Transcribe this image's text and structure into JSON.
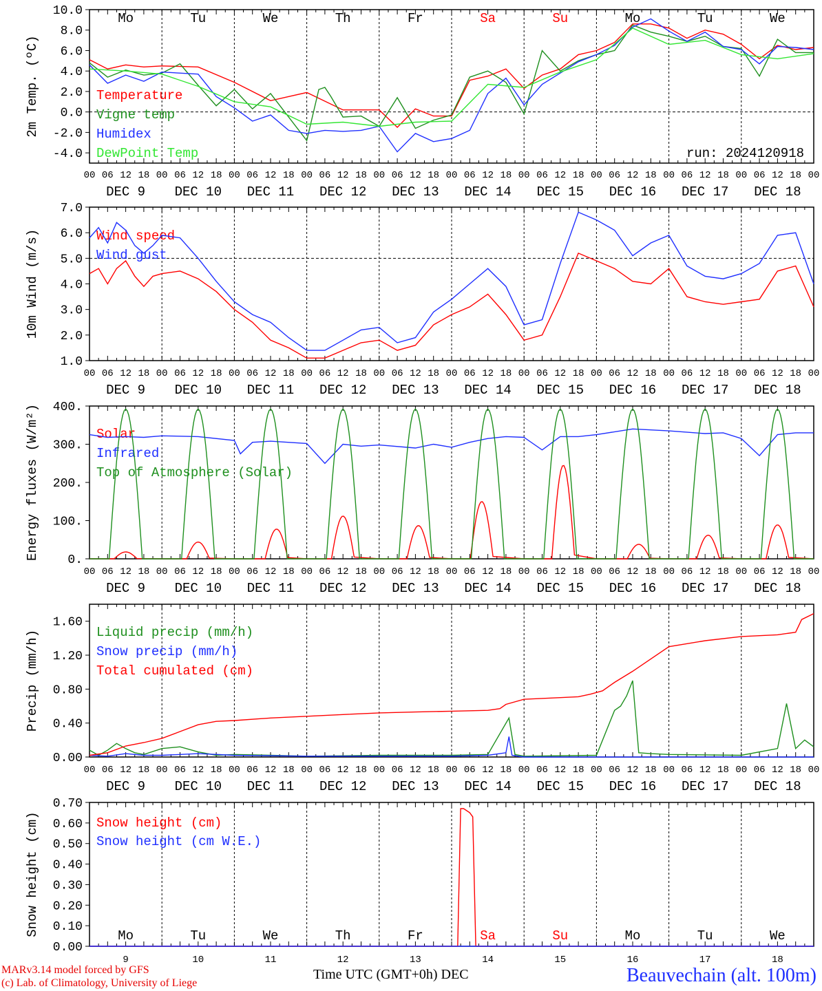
{
  "colors": {
    "red": "#ff0000",
    "green": "#1e8f1e",
    "blue": "#1f2fff",
    "lime": "#33e633",
    "axis": "#000000",
    "weekend": "#ff0000"
  },
  "days": [
    "Mo",
    "Tu",
    "We",
    "Th",
    "Fr",
    "Sa",
    "Su",
    "Mo",
    "Tu",
    "We"
  ],
  "weekend_days": [
    5,
    6
  ],
  "date_labels": [
    "DEC  9",
    "DEC 10",
    "DEC 11",
    "DEC 12",
    "DEC 13",
    "DEC 14",
    "DEC 15",
    "DEC 16",
    "DEC 17",
    "DEC 18"
  ],
  "hour_ticks": [
    "00",
    "06",
    "12",
    "18"
  ],
  "bottom_day_numbers": [
    "9",
    "10",
    "11",
    "12",
    "13",
    "14",
    "15",
    "16",
    "17",
    "18"
  ],
  "footer": {
    "credit1": "MARv3.14 model forced by GFS",
    "credit2": "(c) Lab. of Climatology, University of Liege",
    "time_label": "Time UTC (GMT+0h) DEC",
    "station": "Beauvechain (alt. 100m)"
  },
  "chart_data": [
    {
      "type": "line",
      "ylabel": "2m Temp. (ºC)",
      "ylim": [
        -5,
        10
      ],
      "yticks": [
        "10.0",
        "8.0",
        "6.0",
        "4.0",
        "2.0",
        "0.0",
        "-2.0",
        "-4.0"
      ],
      "ytick_values": [
        10,
        8,
        6,
        4,
        2,
        0,
        -2,
        -4
      ],
      "reference_line": 0,
      "annotation": "run: 2024120918",
      "x_unit": "hours from 2024-12-09 00 UTC",
      "series": [
        {
          "name": "Temperature",
          "color": "red",
          "x": [
            0,
            6,
            12,
            18,
            24,
            36,
            48,
            60,
            72,
            84,
            90,
            96,
            102,
            108,
            114,
            120,
            126,
            132,
            138,
            144,
            150,
            156,
            162,
            168,
            174,
            180,
            186,
            192,
            198,
            204,
            210,
            216,
            222,
            228,
            234,
            240
          ],
          "values": [
            5.1,
            4.2,
            4.6,
            4.4,
            4.5,
            4.4,
            2.9,
            1.1,
            1.9,
            0.2,
            0.2,
            0.2,
            -1.5,
            0.3,
            -0.4,
            -0.4,
            3.1,
            3.5,
            4.2,
            2.3,
            3.6,
            4.2,
            5.6,
            6.0,
            6.8,
            8.6,
            8.6,
            8.2,
            7.2,
            8.0,
            7.6,
            6.6,
            5.2,
            6.5,
            6.1,
            6.3
          ]
        },
        {
          "name": "Vigne temp",
          "color": "green",
          "x": [
            0,
            6,
            12,
            18,
            24,
            30,
            36,
            42,
            48,
            54,
            60,
            66,
            72,
            76,
            78,
            80,
            84,
            90,
            96,
            102,
            108,
            114,
            120,
            126,
            132,
            138,
            144,
            150,
            156,
            162,
            168,
            174,
            180,
            186,
            192,
            198,
            204,
            210,
            216,
            222,
            228,
            234,
            240
          ],
          "values": [
            4.8,
            3.4,
            4.1,
            3.6,
            3.8,
            4.7,
            2.6,
            0.6,
            2.2,
            0.3,
            1.8,
            -0.5,
            -2.8,
            2.2,
            2.4,
            1.5,
            -0.5,
            -0.4,
            -1.4,
            1.4,
            -1.6,
            -0.8,
            -0.3,
            3.4,
            4.0,
            2.9,
            -0.2,
            6.0,
            4.0,
            5.0,
            5.6,
            6.0,
            8.5,
            7.8,
            7.4,
            6.9,
            7.4,
            6.4,
            6.2,
            3.5,
            7.1,
            5.8,
            5.8
          ]
        },
        {
          "name": "Humidex",
          "color": "blue",
          "x": [
            0,
            6,
            12,
            18,
            24,
            36,
            42,
            48,
            54,
            60,
            66,
            72,
            78,
            84,
            90,
            96,
            102,
            108,
            114,
            120,
            126,
            132,
            138,
            144,
            150,
            156,
            162,
            168,
            174,
            180,
            186,
            192,
            198,
            204,
            210,
            216,
            222,
            228,
            234,
            240
          ],
          "values": [
            4.6,
            2.8,
            3.6,
            3.0,
            3.9,
            3.7,
            1.5,
            0.4,
            -0.9,
            -0.3,
            -1.8,
            -2.1,
            -1.8,
            -1.9,
            -1.8,
            -1.4,
            -3.9,
            -2.1,
            -2.9,
            -2.6,
            -1.8,
            1.8,
            3.3,
            0.7,
            2.7,
            3.8,
            4.9,
            5.6,
            6.5,
            8.3,
            9.1,
            7.9,
            6.9,
            7.8,
            6.4,
            6.1,
            4.7,
            6.4,
            6.3,
            6.1
          ]
        },
        {
          "name": "DewPoint Temp",
          "color": "lime",
          "x": [
            0,
            12,
            24,
            36,
            48,
            60,
            72,
            84,
            96,
            108,
            120,
            132,
            144,
            156,
            168,
            180,
            192,
            204,
            216,
            228,
            240
          ],
          "values": [
            4.2,
            4.0,
            3.7,
            2.5,
            1.0,
            0.5,
            -1.2,
            -1.0,
            -1.4,
            -1.0,
            -0.9,
            2.7,
            2.4,
            3.9,
            5.1,
            8.2,
            6.6,
            7.0,
            5.6,
            5.2,
            5.7
          ]
        }
      ]
    },
    {
      "type": "line",
      "ylabel": "10m Wind (m/s)",
      "ylim": [
        1,
        7
      ],
      "yticks": [
        "7.0",
        "6.0",
        "5.0",
        "4.0",
        "3.0",
        "2.0",
        "1.0"
      ],
      "ytick_values": [
        7,
        6,
        5,
        4,
        3,
        2,
        1
      ],
      "reference_line": 5,
      "x_unit": "hours from 2024-12-09 00 UTC",
      "series": [
        {
          "name": "Wind speed",
          "color": "red",
          "x": [
            0,
            3,
            6,
            9,
            12,
            15,
            18,
            21,
            24,
            30,
            36,
            42,
            48,
            54,
            60,
            66,
            72,
            78,
            84,
            90,
            96,
            102,
            108,
            114,
            120,
            126,
            132,
            138,
            144,
            150,
            156,
            162,
            168,
            174,
            180,
            186,
            192,
            198,
            204,
            210,
            216,
            222,
            228,
            234,
            240
          ],
          "values": [
            4.4,
            4.6,
            4.0,
            4.6,
            4.9,
            4.3,
            3.9,
            4.3,
            4.4,
            4.5,
            4.2,
            3.7,
            3.0,
            2.5,
            1.8,
            1.5,
            1.1,
            1.1,
            1.4,
            1.7,
            1.8,
            1.4,
            1.6,
            2.4,
            2.8,
            3.1,
            3.6,
            2.8,
            1.8,
            2.0,
            3.5,
            5.2,
            4.9,
            4.6,
            4.1,
            4.0,
            4.6,
            3.5,
            3.3,
            3.2,
            3.3,
            3.4,
            4.5,
            4.7,
            3.1
          ]
        },
        {
          "name": "Wind gust",
          "color": "blue",
          "x": [
            0,
            3,
            6,
            9,
            12,
            15,
            18,
            21,
            24,
            30,
            36,
            42,
            48,
            54,
            60,
            66,
            72,
            78,
            84,
            90,
            96,
            102,
            108,
            114,
            120,
            126,
            132,
            138,
            144,
            150,
            156,
            162,
            168,
            174,
            180,
            186,
            192,
            198,
            204,
            210,
            216,
            222,
            228,
            234,
            240
          ],
          "values": [
            5.8,
            6.2,
            5.6,
            6.4,
            6.1,
            5.5,
            5.2,
            5.5,
            5.9,
            5.8,
            5.0,
            4.1,
            3.3,
            2.8,
            2.5,
            1.9,
            1.4,
            1.4,
            1.8,
            2.2,
            2.3,
            1.7,
            1.9,
            2.9,
            3.4,
            4.0,
            4.6,
            3.9,
            2.4,
            2.6,
            4.8,
            6.8,
            6.5,
            6.1,
            5.1,
            5.6,
            5.9,
            4.7,
            4.3,
            4.2,
            4.4,
            4.8,
            5.9,
            6.0,
            4.0
          ]
        }
      ]
    },
    {
      "type": "line",
      "ylabel": "Energy fluxes (W/m²)",
      "ylim": [
        0,
        400
      ],
      "yticks": [
        "400.",
        "300.",
        "200.",
        "100.",
        "0."
      ],
      "ytick_values": [
        400,
        300,
        200,
        100,
        0
      ],
      "x_unit": "hours from 2024-12-09 00 UTC",
      "series": [
        {
          "name": "Solar",
          "color": "red",
          "peaks": [
            18,
            44,
            78,
            112,
            87,
            150,
            245,
            38,
            62,
            89
          ],
          "peak_offsets": [
            12,
            12,
            14,
            12,
            13,
            10,
            13,
            14,
            13,
            12
          ]
        },
        {
          "name": "Infrared",
          "color": "blue",
          "x": [
            0,
            6,
            12,
            18,
            24,
            36,
            48,
            50,
            54,
            60,
            72,
            78,
            84,
            90,
            96,
            108,
            114,
            120,
            126,
            132,
            138,
            144,
            150,
            156,
            162,
            168,
            180,
            192,
            204,
            210,
            216,
            222,
            228,
            234,
            240
          ],
          "values": [
            325,
            318,
            320,
            318,
            322,
            320,
            310,
            275,
            305,
            308,
            302,
            250,
            300,
            295,
            298,
            290,
            300,
            292,
            305,
            315,
            320,
            318,
            285,
            320,
            320,
            325,
            340,
            335,
            328,
            330,
            315,
            270,
            325,
            330,
            330
          ]
        },
        {
          "name": "Top of Atmosphere (Solar)",
          "color": "green",
          "peaks": [
            392,
            392,
            392,
            392,
            392,
            392,
            392,
            392,
            392,
            392
          ],
          "peak_offsets": [
            12,
            12,
            12,
            12,
            12,
            12,
            12,
            12,
            12,
            12
          ]
        }
      ]
    },
    {
      "type": "line",
      "ylabel": "Precip (mm/h)",
      "ylim": [
        0,
        1.8
      ],
      "yticks": [
        "1.60",
        "1.20",
        "0.80",
        "0.40",
        "0.00"
      ],
      "ytick_values": [
        1.6,
        1.2,
        0.8,
        0.4,
        0.0
      ],
      "x_unit": "hours from 2024-12-09 00 UTC",
      "series": [
        {
          "name": "Liquid precip (mm/h)",
          "color": "green",
          "x": [
            0,
            3,
            6,
            9,
            12,
            15,
            18,
            24,
            30,
            36,
            42,
            48,
            60,
            72,
            96,
            120,
            132,
            139,
            141,
            144,
            168,
            174,
            176,
            178,
            180,
            182,
            186,
            192,
            216,
            228,
            231,
            234,
            237,
            240
          ],
          "values": [
            0.08,
            0.02,
            0.08,
            0.16,
            0.1,
            0.05,
            0.03,
            0.1,
            0.12,
            0.06,
            0.02,
            0.03,
            0.02,
            0.01,
            0.02,
            0.02,
            0.03,
            0.46,
            0.03,
            0.01,
            0.02,
            0.55,
            0.6,
            0.72,
            0.9,
            0.05,
            0.04,
            0.03,
            0.02,
            0.1,
            0.63,
            0.1,
            0.2,
            0.12
          ]
        },
        {
          "name": "Snow precip (mm/h)",
          "color": "blue",
          "x": [
            0,
            6,
            12,
            18,
            24,
            36,
            48,
            72,
            96,
            120,
            132,
            138,
            139,
            140,
            144,
            168,
            240
          ],
          "values": [
            0.02,
            0.01,
            0.04,
            0.02,
            0.02,
            0.04,
            0.02,
            0.01,
            0.01,
            0.01,
            0.02,
            0.05,
            0.24,
            0.02,
            0.0,
            0.0,
            0.0
          ]
        },
        {
          "name": "Total cumulated (cm)",
          "color": "red",
          "x": [
            0,
            6,
            12,
            18,
            24,
            30,
            36,
            42,
            48,
            60,
            72,
            84,
            96,
            108,
            120,
            132,
            136,
            138,
            144,
            156,
            162,
            166,
            170,
            174,
            180,
            192,
            204,
            216,
            228,
            234,
            236,
            240
          ],
          "values": [
            0.02,
            0.05,
            0.13,
            0.17,
            0.22,
            0.3,
            0.38,
            0.42,
            0.43,
            0.46,
            0.48,
            0.5,
            0.52,
            0.53,
            0.54,
            0.55,
            0.57,
            0.62,
            0.68,
            0.7,
            0.71,
            0.74,
            0.78,
            0.88,
            1.01,
            1.3,
            1.37,
            1.42,
            1.44,
            1.47,
            1.62,
            1.69
          ]
        }
      ]
    },
    {
      "type": "line",
      "ylabel": "Snow height (cm)",
      "ylim": [
        0,
        0.7
      ],
      "yticks": [
        "0.70",
        "0.60",
        "0.50",
        "0.40",
        "0.30",
        "0.20",
        "0.10",
        "0.00"
      ],
      "ytick_values": [
        0.7,
        0.6,
        0.5,
        0.4,
        0.3,
        0.2,
        0.1,
        0.0
      ],
      "x_unit": "hours from 2024-12-09 00 UTC",
      "series": [
        {
          "name": "Snow height (cm)",
          "color": "red",
          "x": [
            0,
            122,
            123,
            124,
            126,
            127,
            128,
            240
          ],
          "values": [
            0,
            0,
            0.67,
            0.67,
            0.65,
            0.63,
            0,
            0
          ]
        },
        {
          "name": "Snow height (cm W.E.)",
          "color": "blue",
          "x": [
            0,
            240
          ],
          "values": [
            0,
            0
          ]
        }
      ]
    }
  ]
}
